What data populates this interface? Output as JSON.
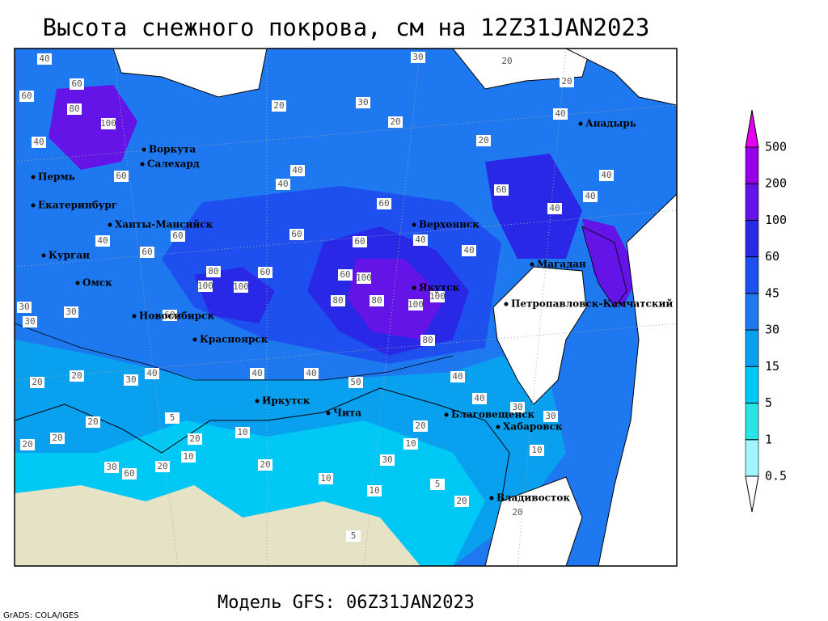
{
  "title": "Высота снежного покрова, см на 12Z31JAN2023",
  "footer": "Модель GFS: 06Z31JAN2023",
  "credit": "GrADS: COLA/IGES",
  "colorbar": {
    "levels": [
      0.5,
      1,
      5,
      15,
      30,
      45,
      60,
      100,
      200,
      500
    ],
    "colors": [
      "#ffffff",
      "#a0f5ff",
      "#28e6e6",
      "#00c8f5",
      "#0aa0f0",
      "#1e78f0",
      "#1e50f0",
      "#2828e6",
      "#6414e6",
      "#9600e6",
      "#e600f0"
    ]
  },
  "cities": [
    "Воркута",
    "Салехард",
    "Пермь",
    "Екатеринбург",
    "Ханты-Мансийск",
    "Курган",
    "Омск",
    "Новосибирск",
    "Красноярск",
    "Иркутск",
    "Чита",
    "Благовещенск",
    "Хабаровск",
    "Владивосток",
    "Якутск",
    "Верхоянск",
    "Магадан",
    "Петропавловск-Камчатский",
    "Анадырь"
  ],
  "contour_labels": [
    40,
    60,
    60,
    80,
    100,
    40,
    60,
    40,
    60,
    60,
    80,
    100,
    100,
    60,
    60,
    40,
    40,
    60,
    60,
    60,
    100,
    80,
    80,
    100,
    100,
    80,
    40,
    40,
    60,
    40,
    40,
    40,
    40,
    20,
    20,
    30,
    30,
    20,
    20,
    20,
    30,
    30,
    30,
    20,
    20,
    30,
    40,
    60,
    40,
    40,
    50,
    40,
    40,
    30,
    20,
    10,
    10,
    20,
    10,
    20,
    10,
    30,
    10,
    5,
    20,
    5,
    5,
    20,
    20,
    30,
    60,
    20,
    20,
    20,
    10,
    30
  ]
}
